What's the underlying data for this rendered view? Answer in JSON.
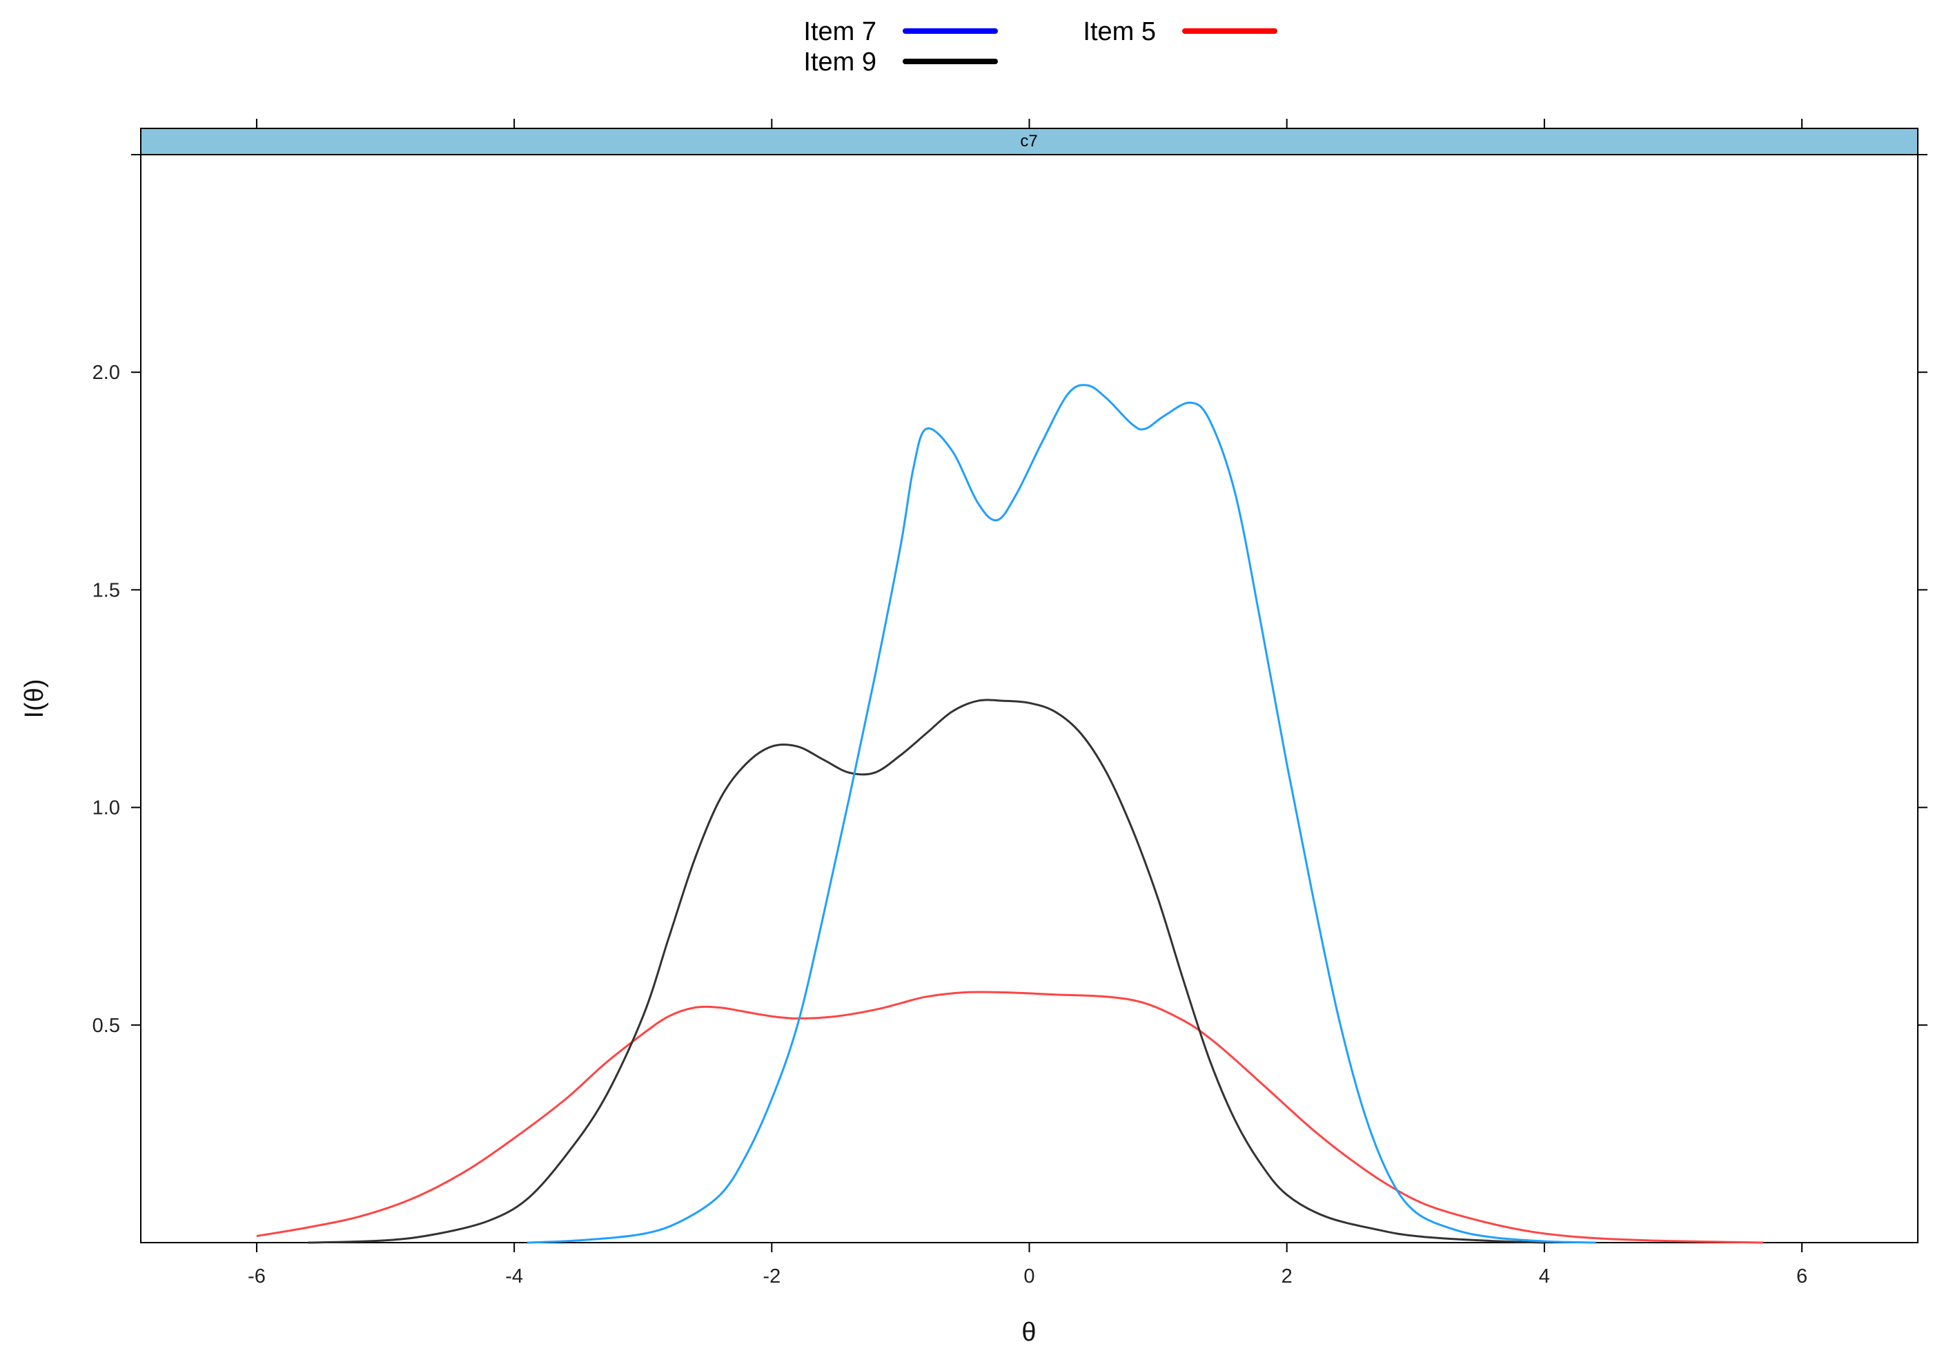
{
  "chart_data": {
    "type": "line",
    "panel_title": "c7",
    "xlabel": "θ",
    "ylabel": "I(θ)",
    "xlim": [
      -6.9,
      6.9
    ],
    "ylim": [
      0,
      2.5
    ],
    "x_ticks": [
      -6,
      -4,
      -2,
      0,
      2,
      4,
      6
    ],
    "x_tick_labels": [
      "-6",
      "-4",
      "-2",
      "0",
      "2",
      "4",
      "6"
    ],
    "y_ticks": [
      0.5,
      1.0,
      1.5,
      2.0
    ],
    "y_tick_labels": [
      "0.5",
      "1.0",
      "1.5",
      "2.0"
    ],
    "legend": [
      {
        "label": "Item 7",
        "color": "#0000ff"
      },
      {
        "label": "Item 9",
        "color": "#000000"
      },
      {
        "label": "Item 5",
        "color": "#ff0000"
      }
    ],
    "series": [
      {
        "name": "Item 7",
        "color": "#1fa0ff",
        "points": [
          [
            -3.9,
            0.0
          ],
          [
            -3.5,
            0.005
          ],
          [
            -3.0,
            0.02
          ],
          [
            -2.7,
            0.05
          ],
          [
            -2.4,
            0.11
          ],
          [
            -2.2,
            0.2
          ],
          [
            -2.0,
            0.33
          ],
          [
            -1.8,
            0.5
          ],
          [
            -1.6,
            0.75
          ],
          [
            -1.4,
            1.02
          ],
          [
            -1.2,
            1.3
          ],
          [
            -1.0,
            1.6
          ],
          [
            -0.9,
            1.78
          ],
          [
            -0.8,
            1.87
          ],
          [
            -0.6,
            1.82
          ],
          [
            -0.4,
            1.7
          ],
          [
            -0.25,
            1.66
          ],
          [
            -0.1,
            1.72
          ],
          [
            0.1,
            1.84
          ],
          [
            0.3,
            1.95
          ],
          [
            0.45,
            1.97
          ],
          [
            0.6,
            1.94
          ],
          [
            0.8,
            1.88
          ],
          [
            0.9,
            1.87
          ],
          [
            1.05,
            1.9
          ],
          [
            1.25,
            1.93
          ],
          [
            1.4,
            1.89
          ],
          [
            1.6,
            1.72
          ],
          [
            1.8,
            1.42
          ],
          [
            2.0,
            1.1
          ],
          [
            2.2,
            0.8
          ],
          [
            2.4,
            0.52
          ],
          [
            2.6,
            0.3
          ],
          [
            2.8,
            0.15
          ],
          [
            3.0,
            0.07
          ],
          [
            3.3,
            0.03
          ],
          [
            3.6,
            0.012
          ],
          [
            4.0,
            0.003
          ],
          [
            4.4,
            0.0
          ]
        ]
      },
      {
        "name": "Item 9",
        "color": "#333333",
        "points": [
          [
            -5.6,
            0.0
          ],
          [
            -5.0,
            0.005
          ],
          [
            -4.6,
            0.02
          ],
          [
            -4.2,
            0.05
          ],
          [
            -3.9,
            0.1
          ],
          [
            -3.6,
            0.2
          ],
          [
            -3.3,
            0.33
          ],
          [
            -3.0,
            0.52
          ],
          [
            -2.8,
            0.7
          ],
          [
            -2.6,
            0.88
          ],
          [
            -2.4,
            1.02
          ],
          [
            -2.2,
            1.1
          ],
          [
            -2.0,
            1.14
          ],
          [
            -1.8,
            1.14
          ],
          [
            -1.6,
            1.11
          ],
          [
            -1.4,
            1.08
          ],
          [
            -1.2,
            1.08
          ],
          [
            -1.0,
            1.12
          ],
          [
            -0.8,
            1.17
          ],
          [
            -0.6,
            1.22
          ],
          [
            -0.4,
            1.245
          ],
          [
            -0.2,
            1.245
          ],
          [
            0.0,
            1.24
          ],
          [
            0.2,
            1.22
          ],
          [
            0.4,
            1.17
          ],
          [
            0.6,
            1.08
          ],
          [
            0.8,
            0.95
          ],
          [
            1.0,
            0.79
          ],
          [
            1.2,
            0.6
          ],
          [
            1.4,
            0.42
          ],
          [
            1.6,
            0.28
          ],
          [
            1.8,
            0.18
          ],
          [
            2.0,
            0.11
          ],
          [
            2.3,
            0.06
          ],
          [
            2.7,
            0.03
          ],
          [
            3.0,
            0.015
          ],
          [
            3.5,
            0.005
          ],
          [
            4.0,
            0.0
          ]
        ]
      },
      {
        "name": "Item 5",
        "color": "#ff4444",
        "points": [
          [
            -6.0,
            0.015
          ],
          [
            -5.6,
            0.035
          ],
          [
            -5.2,
            0.06
          ],
          [
            -4.8,
            0.1
          ],
          [
            -4.4,
            0.16
          ],
          [
            -4.0,
            0.24
          ],
          [
            -3.6,
            0.33
          ],
          [
            -3.3,
            0.41
          ],
          [
            -3.0,
            0.48
          ],
          [
            -2.8,
            0.52
          ],
          [
            -2.6,
            0.54
          ],
          [
            -2.4,
            0.54
          ],
          [
            -2.2,
            0.53
          ],
          [
            -2.0,
            0.52
          ],
          [
            -1.8,
            0.515
          ],
          [
            -1.5,
            0.52
          ],
          [
            -1.2,
            0.535
          ],
          [
            -1.0,
            0.55
          ],
          [
            -0.8,
            0.565
          ],
          [
            -0.5,
            0.575
          ],
          [
            -0.2,
            0.575
          ],
          [
            0.2,
            0.57
          ],
          [
            0.6,
            0.565
          ],
          [
            0.9,
            0.55
          ],
          [
            1.2,
            0.51
          ],
          [
            1.4,
            0.47
          ],
          [
            1.6,
            0.42
          ],
          [
            1.9,
            0.34
          ],
          [
            2.2,
            0.26
          ],
          [
            2.5,
            0.19
          ],
          [
            2.8,
            0.13
          ],
          [
            3.1,
            0.085
          ],
          [
            3.5,
            0.05
          ],
          [
            3.9,
            0.025
          ],
          [
            4.3,
            0.012
          ],
          [
            4.8,
            0.005
          ],
          [
            5.3,
            0.002
          ],
          [
            5.7,
            0.0
          ]
        ]
      }
    ]
  }
}
